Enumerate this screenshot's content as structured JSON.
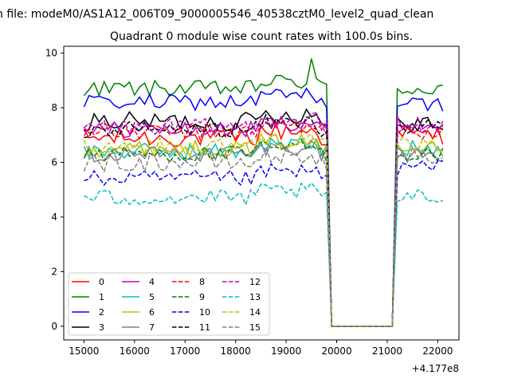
{
  "chart_data": {
    "type": "line",
    "suptitle": "n file: modeM0/AS1A12_006T09_9000005546_40538cztM0_level2_quad_clean",
    "title": "Quadrant 0 module wise count rates with 100.0s bins.",
    "xlabel": "",
    "ylabel": "",
    "x_offset_label": "+4.177e8",
    "xlim": [
      14600,
      22420
    ],
    "ylim": [
      -0.5,
      10.25
    ],
    "x_ticks": [
      15000,
      16000,
      17000,
      18000,
      19000,
      20000,
      21000,
      22000
    ],
    "y_ticks": [
      0,
      2,
      4,
      6,
      8,
      10
    ],
    "x_tick_labels": [
      "15000",
      "16000",
      "17000",
      "18000",
      "19000",
      "20000",
      "21000",
      "22000"
    ],
    "y_tick_labels": [
      "0",
      "2",
      "4",
      "6",
      "8",
      "10"
    ],
    "grid": false,
    "legend_position": "lower-left",
    "legend_columns": 4,
    "segments": [
      {
        "x_start": 15000,
        "x_end": 19800
      },
      {
        "x_start": 19900,
        "x_end": 21100
      },
      {
        "x_start": 21200,
        "x_end": 22100
      }
    ],
    "series": [
      {
        "name": "0",
        "color": "#ff0000",
        "dash": "solid",
        "level": 6.9,
        "post_level": 7.0,
        "amp": 0.35
      },
      {
        "name": "1",
        "color": "#008000",
        "dash": "solid",
        "level": 8.7,
        "post_level": 8.7,
        "amp": 0.3,
        "peak": 9.8
      },
      {
        "name": "2",
        "color": "#0000ff",
        "dash": "solid",
        "level": 8.2,
        "post_level": 8.1,
        "amp": 0.3
      },
      {
        "name": "3",
        "color": "#000000",
        "dash": "solid",
        "level": 7.5,
        "post_level": 7.5,
        "amp": 0.35
      },
      {
        "name": "4",
        "color": "#bf00bf",
        "dash": "solid",
        "level": 7.2,
        "post_level": 7.4,
        "amp": 0.3
      },
      {
        "name": "5",
        "color": "#00bfbf",
        "dash": "solid",
        "level": 6.4,
        "post_level": 6.5,
        "amp": 0.3
      },
      {
        "name": "6",
        "color": "#bfbf00",
        "dash": "solid",
        "level": 6.5,
        "post_level": 6.7,
        "amp": 0.3
      },
      {
        "name": "7",
        "color": "#808080",
        "dash": "solid",
        "level": 6.3,
        "post_level": 6.3,
        "amp": 0.3
      },
      {
        "name": "8",
        "color": "#ff0000",
        "dash": "dashed",
        "level": 7.1,
        "post_level": 7.1,
        "amp": 0.3
      },
      {
        "name": "9",
        "color": "#008000",
        "dash": "dashed",
        "level": 6.3,
        "post_level": 6.3,
        "amp": 0.3
      },
      {
        "name": "10",
        "color": "#0000ff",
        "dash": "dashed",
        "level": 5.4,
        "post_level": 5.8,
        "amp": 0.3
      },
      {
        "name": "11",
        "color": "#000000",
        "dash": "dashed",
        "level": 7.2,
        "post_level": 7.3,
        "amp": 0.3
      },
      {
        "name": "12",
        "color": "#bf00bf",
        "dash": "dashed",
        "level": 7.3,
        "post_level": 7.3,
        "amp": 0.3
      },
      {
        "name": "13",
        "color": "#00bfbf",
        "dash": "dashed",
        "level": 4.7,
        "post_level": 4.7,
        "amp": 0.3
      },
      {
        "name": "14",
        "color": "#bfbf00",
        "dash": "dashed",
        "level": 6.6,
        "post_level": 6.6,
        "amp": 0.3
      },
      {
        "name": "15",
        "color": "#808080",
        "dash": "dashed",
        "level": 6.0,
        "post_level": 6.2,
        "amp": 0.35
      }
    ]
  }
}
